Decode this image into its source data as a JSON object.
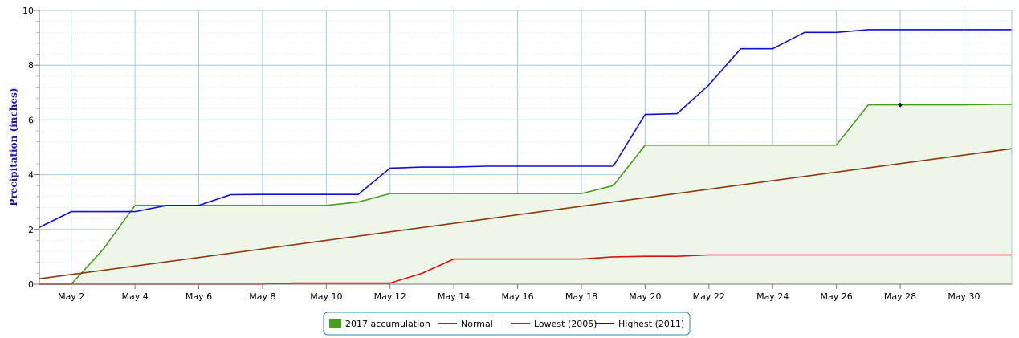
{
  "chart_data": {
    "type": "line",
    "ylabel": "Precipitation (inches)",
    "xlabel": "",
    "title": "",
    "ylim": [
      0,
      10
    ],
    "xlim": [
      1,
      31.5
    ],
    "y_ticks": [
      0,
      2,
      4,
      6,
      8,
      10
    ],
    "x_ticks": [
      {
        "day": 2,
        "label": "May 2"
      },
      {
        "day": 4,
        "label": "May 4"
      },
      {
        "day": 6,
        "label": "May 6"
      },
      {
        "day": 8,
        "label": "May 8"
      },
      {
        "day": 10,
        "label": "May 10"
      },
      {
        "day": 12,
        "label": "May 12"
      },
      {
        "day": 14,
        "label": "May 14"
      },
      {
        "day": 16,
        "label": "May 16"
      },
      {
        "day": 18,
        "label": "May 18"
      },
      {
        "day": 20,
        "label": "May 20"
      },
      {
        "day": 22,
        "label": "May 22"
      },
      {
        "day": 24,
        "label": "May 24"
      },
      {
        "day": 26,
        "label": "May 26"
      },
      {
        "day": 28,
        "label": "May 28"
      },
      {
        "day": 30,
        "label": "May 30"
      }
    ],
    "grid": true,
    "legend_position": "bottom-center",
    "series": [
      {
        "name": "2017 accumulation",
        "style": "area",
        "color": "#4a9e1e",
        "fill": "#edf6e8",
        "x": [
          1,
          2,
          3,
          4,
          5,
          6,
          7,
          8,
          9,
          10,
          11,
          12,
          13,
          14,
          15,
          16,
          17,
          18,
          19,
          20,
          21,
          22,
          23,
          24,
          25,
          26,
          27,
          28,
          29,
          30,
          31,
          32
        ],
        "values": [
          0,
          0,
          1.27,
          2.88,
          2.88,
          2.88,
          2.88,
          2.88,
          2.88,
          2.88,
          3.0,
          3.31,
          3.31,
          3.31,
          3.31,
          3.31,
          3.31,
          3.31,
          3.6,
          5.08,
          5.08,
          5.08,
          5.08,
          5.08,
          5.08,
          5.08,
          6.55,
          6.55,
          6.55,
          6.55,
          6.57,
          6.57
        ]
      },
      {
        "name": "Normal",
        "style": "line",
        "color": "#8b3a0f",
        "x": [
          1,
          32
        ],
        "values": [
          0.2,
          4.95
        ]
      },
      {
        "name": "Lowest (2005)",
        "style": "line",
        "color": "#e01010",
        "x": [
          1,
          2,
          3,
          4,
          5,
          6,
          7,
          8,
          9,
          10,
          11,
          12,
          13,
          14,
          15,
          16,
          17,
          18,
          19,
          20,
          21,
          22,
          23,
          24,
          25,
          26,
          27,
          28,
          29,
          30,
          31,
          32
        ],
        "values": [
          0,
          0,
          0,
          0,
          0,
          0,
          0,
          0,
          0.04,
          0.04,
          0.04,
          0.04,
          0.4,
          0.92,
          0.92,
          0.92,
          0.92,
          0.92,
          1.0,
          1.02,
          1.02,
          1.07,
          1.07,
          1.07,
          1.07,
          1.07,
          1.07,
          1.07,
          1.07,
          1.07,
          1.07,
          1.07
        ]
      },
      {
        "name": "Highest (2011)",
        "style": "line",
        "color": "#1010d0",
        "x": [
          1,
          2,
          3,
          4,
          5,
          6,
          7,
          8,
          9,
          10,
          11,
          12,
          13,
          14,
          15,
          16,
          17,
          18,
          19,
          20,
          21,
          22,
          23,
          24,
          25,
          26,
          27,
          28,
          29,
          30,
          31,
          32
        ],
        "values": [
          2.08,
          2.65,
          2.65,
          2.65,
          2.88,
          2.88,
          3.27,
          3.28,
          3.28,
          3.28,
          3.28,
          4.24,
          4.28,
          4.28,
          4.31,
          4.31,
          4.31,
          4.31,
          4.31,
          6.2,
          6.23,
          7.28,
          8.6,
          8.6,
          9.2,
          9.2,
          9.3,
          9.3,
          9.3,
          9.3,
          9.3,
          9.3
        ]
      }
    ],
    "marker": {
      "x": 28,
      "y": 6.55
    }
  }
}
